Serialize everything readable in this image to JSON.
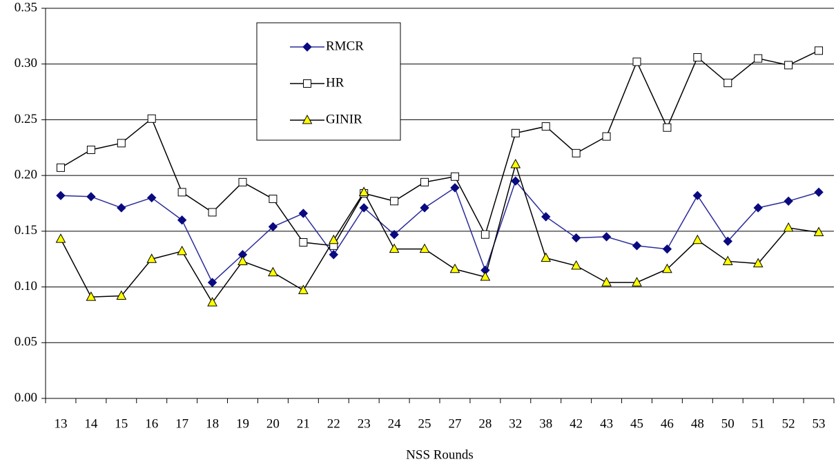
{
  "chart_data": {
    "type": "line",
    "x_label": "NSS Rounds",
    "categories": [
      "13",
      "14",
      "15",
      "16",
      "17",
      "18",
      "19",
      "20",
      "21",
      "22",
      "23",
      "24",
      "25",
      "27",
      "28",
      "32",
      "38",
      "42",
      "43",
      "45",
      "46",
      "48",
      "50",
      "51",
      "52",
      "53"
    ],
    "series": [
      {
        "name": "RMCR",
        "color": "#2a2a9a",
        "marker": "diamond",
        "marker_fill": "#0a0a80",
        "values": [
          0.182,
          0.181,
          0.171,
          0.18,
          0.16,
          0.104,
          0.129,
          0.154,
          0.166,
          0.129,
          0.171,
          0.147,
          0.171,
          0.189,
          0.115,
          0.195,
          0.163,
          0.144,
          0.145,
          0.137,
          0.134,
          0.182,
          0.141,
          0.171,
          0.177,
          0.185
        ]
      },
      {
        "name": "HR",
        "color": "#000000",
        "marker": "square",
        "marker_fill": "#ffffff",
        "values": [
          0.207,
          0.223,
          0.229,
          0.251,
          0.185,
          0.167,
          0.194,
          0.179,
          0.14,
          0.137,
          0.184,
          0.177,
          0.194,
          0.199,
          0.147,
          0.238,
          0.244,
          0.22,
          0.235,
          0.302,
          0.243,
          0.306,
          0.283,
          0.305,
          0.299,
          0.312
        ]
      },
      {
        "name": "GINIR",
        "color": "#000000",
        "marker": "triangle",
        "marker_fill": "#ffff00",
        "values": [
          0.143,
          0.091,
          0.092,
          0.125,
          0.132,
          0.086,
          0.123,
          0.113,
          0.097,
          0.142,
          0.185,
          0.134,
          0.134,
          0.116,
          0.109,
          0.21,
          0.126,
          0.119,
          0.104,
          0.104,
          0.116,
          0.142,
          0.123,
          0.121,
          0.153,
          0.149
        ]
      }
    ],
    "ylim": [
      0,
      0.35
    ],
    "yticks": [
      {
        "value": 0,
        "label": "0.00"
      },
      0.05,
      {
        "value": 0.1,
        "label": "0.10"
      },
      0.15,
      {
        "value": 0.2,
        "label": "0.20"
      },
      0.25,
      {
        "value": 0.3,
        "label": "0.30"
      },
      0.35
    ],
    "grid": true,
    "legend": "upper left"
  }
}
